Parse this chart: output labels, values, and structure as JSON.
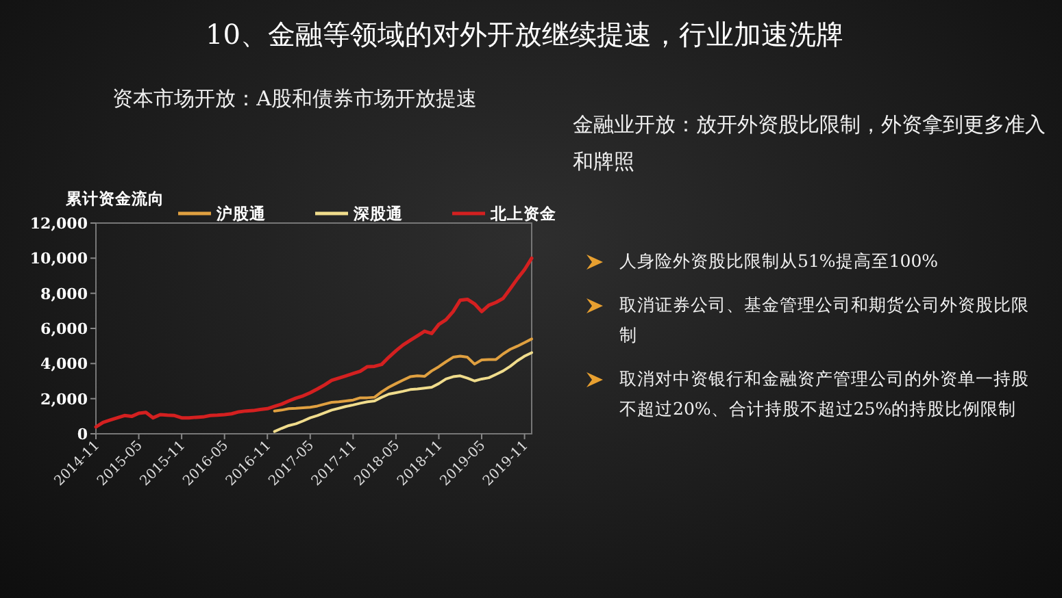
{
  "chart_data": [
    {
      "type": "line",
      "title": "10、金融等领域的对外开放继续提速，行业加速洗牌",
      "subtitle": "资本市场开放：A股和债券市场开放提速",
      "ylabel": "累计资金流向",
      "legend": "top",
      "xlim": [
        "2014-11",
        "2019-12"
      ],
      "xticks": [
        "2014-11",
        "2015-05",
        "2015-11",
        "2016-05",
        "2016-11",
        "2017-05",
        "2017-11",
        "2018-05",
        "2018-11",
        "2019-05",
        "2019-11"
      ],
      "ylim": [
        0,
        12000
      ],
      "yticks": [
        0,
        {
          "value": 2000,
          "label": "2,000"
        },
        {
          "value": 4000,
          "label": "4,000"
        },
        {
          "value": 6000,
          "label": "6,000"
        },
        {
          "value": 8000,
          "label": "8,000"
        },
        {
          "value": 10000,
          "label": "10,000"
        },
        {
          "value": 12000,
          "label": "12,000"
        }
      ],
      "series": [
        {
          "name": "沪股通",
          "color": "#e0a040",
          "x": [
            "2016-12",
            "2017-01",
            "2017-02",
            "2017-03",
            "2017-04",
            "2017-05",
            "2017-06",
            "2017-07",
            "2017-08",
            "2017-09",
            "2017-10",
            "2017-11",
            "2017-12",
            "2018-01",
            "2018-02",
            "2018-03",
            "2018-04",
            "2018-05",
            "2018-06",
            "2018-07",
            "2018-08",
            "2018-09",
            "2018-10",
            "2018-11",
            "2018-12",
            "2019-01",
            "2019-02",
            "2019-03",
            "2019-04",
            "2019-05",
            "2019-06",
            "2019-07",
            "2019-08",
            "2019-09",
            "2019-10",
            "2019-11",
            "2019-12"
          ],
          "values": [
            1300,
            1350,
            1430,
            1450,
            1480,
            1510,
            1580,
            1690,
            1790,
            1820,
            1870,
            1920,
            2050,
            2050,
            2080,
            2390,
            2650,
            2860,
            3060,
            3250,
            3300,
            3270,
            3580,
            3820,
            4100,
            4360,
            4420,
            4360,
            3970,
            4210,
            4230,
            4230,
            4550,
            4810,
            4990,
            5190,
            5400
          ]
        },
        {
          "name": "深股通",
          "color": "#f0dc8c",
          "x": [
            "2016-12",
            "2017-01",
            "2017-02",
            "2017-03",
            "2017-04",
            "2017-05",
            "2017-06",
            "2017-07",
            "2017-08",
            "2017-09",
            "2017-10",
            "2017-11",
            "2017-12",
            "2018-01",
            "2018-02",
            "2018-03",
            "2018-04",
            "2018-05",
            "2018-06",
            "2018-07",
            "2018-08",
            "2018-09",
            "2018-10",
            "2018-11",
            "2018-12",
            "2019-01",
            "2019-02",
            "2019-03",
            "2019-04",
            "2019-05",
            "2019-06",
            "2019-07",
            "2019-08",
            "2019-09",
            "2019-10",
            "2019-11",
            "2019-12"
          ],
          "values": [
            130,
            310,
            470,
            570,
            730,
            910,
            1040,
            1190,
            1350,
            1450,
            1560,
            1640,
            1740,
            1820,
            1870,
            2080,
            2260,
            2340,
            2420,
            2520,
            2550,
            2600,
            2650,
            2860,
            3120,
            3250,
            3300,
            3170,
            3010,
            3120,
            3190,
            3380,
            3580,
            3840,
            4160,
            4420,
            4620
          ]
        },
        {
          "name": "北上资金",
          "color": "#d42020",
          "x": [
            "2014-11",
            "2014-12",
            "2015-01",
            "2015-02",
            "2015-03",
            "2015-04",
            "2015-05",
            "2015-06",
            "2015-07",
            "2015-08",
            "2015-09",
            "2015-10",
            "2015-11",
            "2015-12",
            "2016-01",
            "2016-02",
            "2016-03",
            "2016-04",
            "2016-05",
            "2016-06",
            "2016-07",
            "2016-08",
            "2016-09",
            "2016-10",
            "2016-11",
            "2016-12",
            "2017-01",
            "2017-02",
            "2017-03",
            "2017-04",
            "2017-05",
            "2017-06",
            "2017-07",
            "2017-08",
            "2017-09",
            "2017-10",
            "2017-11",
            "2017-12",
            "2018-01",
            "2018-02",
            "2018-03",
            "2018-04",
            "2018-05",
            "2018-06",
            "2018-07",
            "2018-08",
            "2018-09",
            "2018-10",
            "2018-11",
            "2018-12",
            "2019-01",
            "2019-02",
            "2019-03",
            "2019-04",
            "2019-05",
            "2019-06",
            "2019-07",
            "2019-08",
            "2019-09",
            "2019-10",
            "2019-11",
            "2019-12"
          ],
          "values": [
            390,
            650,
            780,
            910,
            1040,
            990,
            1170,
            1220,
            910,
            1090,
            1060,
            1040,
            910,
            910,
            940,
            960,
            1040,
            1060,
            1090,
            1140,
            1250,
            1300,
            1320,
            1380,
            1430,
            1560,
            1690,
            1870,
            2030,
            2160,
            2340,
            2550,
            2780,
            3040,
            3170,
            3300,
            3430,
            3560,
            3820,
            3840,
            3950,
            4360,
            4730,
            5060,
            5320,
            5580,
            5840,
            5710,
            6230,
            6490,
            6960,
            7610,
            7660,
            7400,
            6960,
            7320,
            7480,
            7710,
            8260,
            8830,
            9350,
            10000
          ]
        }
      ]
    },
    {
      "type": "other",
      "title": "金融业开放：放开外资股比限制，外资拿到更多准入和牌照",
      "annotations": [
        "人身险外资股比限制从51%提高至100%",
        "取消证券公司、基金管理公司和期货公司外资股比限制",
        "取消对中资银行和金融资产管理公司的外资单一持股不超过20%、合计持股不超过25%的持股比例限制"
      ]
    }
  ]
}
